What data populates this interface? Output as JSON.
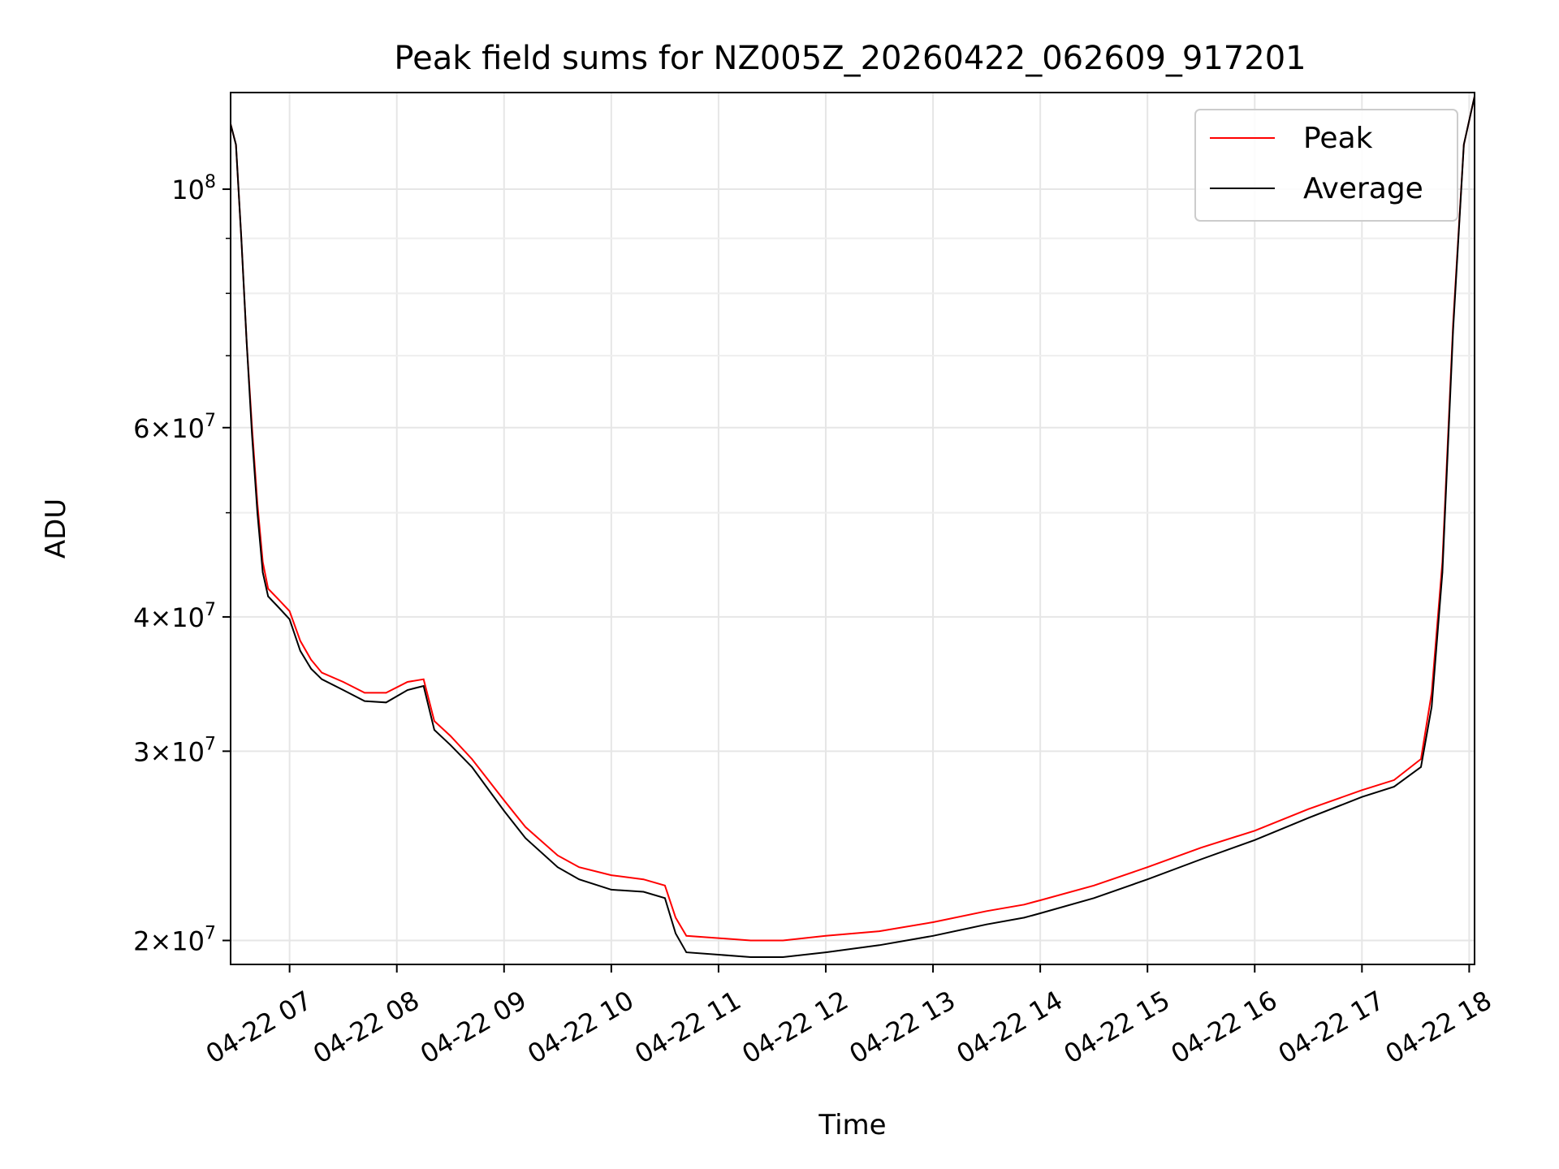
{
  "chart_data": {
    "type": "line",
    "title": "Peak field sums for NZ005Z_20260422_062609_917201",
    "xlabel": "Time",
    "ylabel": "ADU",
    "yscale": "log",
    "xlim": [
      6.45,
      18.05
    ],
    "ylim": [
      19000000,
      123000000
    ],
    "grid": true,
    "legend_position": "top-right",
    "x_ticks": [
      {
        "value": 7,
        "label": "04-22 07"
      },
      {
        "value": 8,
        "label": "04-22 08"
      },
      {
        "value": 9,
        "label": "04-22 09"
      },
      {
        "value": 10,
        "label": "04-22 10"
      },
      {
        "value": 11,
        "label": "04-22 11"
      },
      {
        "value": 12,
        "label": "04-22 12"
      },
      {
        "value": 13,
        "label": "04-22 13"
      },
      {
        "value": 14,
        "label": "04-22 14"
      },
      {
        "value": 15,
        "label": "04-22 15"
      },
      {
        "value": 16,
        "label": "04-22 16"
      },
      {
        "value": 17,
        "label": "04-22 17"
      },
      {
        "value": 18,
        "label": "04-22 18"
      }
    ],
    "y_ticks": [
      {
        "value": 20000000,
        "base": "2",
        "exp": "7"
      },
      {
        "value": 30000000,
        "base": "3",
        "exp": "7"
      },
      {
        "value": 40000000,
        "base": "4",
        "exp": "7"
      },
      {
        "value": 60000000,
        "base": "6",
        "exp": "7"
      },
      {
        "value": 100000000,
        "base": "10",
        "exp": "8"
      }
    ],
    "y_minor_ticks": [
      50000000,
      70000000,
      80000000,
      90000000
    ],
    "series": [
      {
        "name": "Peak",
        "color": "#ff0000",
        "x": [
          6.45,
          6.5,
          6.55,
          6.6,
          6.65,
          6.7,
          6.75,
          6.8,
          6.9,
          7.0,
          7.1,
          7.2,
          7.3,
          7.5,
          7.7,
          7.9,
          8.1,
          8.25,
          8.35,
          8.5,
          8.7,
          9.0,
          9.2,
          9.5,
          9.7,
          10.0,
          10.3,
          10.5,
          10.6,
          10.7,
          11.0,
          11.3,
          11.6,
          12.0,
          12.5,
          13.0,
          13.5,
          13.85,
          14.0,
          14.5,
          15.0,
          15.5,
          16.0,
          16.5,
          17.0,
          17.3,
          17.55,
          17.65,
          17.75,
          17.85,
          17.95,
          18.05
        ],
        "y": [
          115000000,
          110000000,
          90000000,
          72000000,
          60000000,
          51000000,
          45000000,
          42500000,
          41500000,
          40500000,
          38000000,
          36500000,
          35500000,
          34800000,
          34000000,
          34000000,
          34800000,
          35000000,
          32000000,
          31000000,
          29500000,
          27000000,
          25500000,
          24000000,
          23400000,
          23000000,
          22800000,
          22500000,
          21000000,
          20200000,
          20100000,
          20000000,
          20000000,
          20200000,
          20400000,
          20800000,
          21300000,
          21600000,
          21800000,
          22500000,
          23400000,
          24400000,
          25300000,
          26500000,
          27600000,
          28200000,
          29500000,
          34000000,
          45000000,
          75000000,
          110000000,
          122000000
        ]
      },
      {
        "name": "Average",
        "color": "#000000",
        "x": [
          6.45,
          6.5,
          6.55,
          6.6,
          6.65,
          6.7,
          6.75,
          6.8,
          6.9,
          7.0,
          7.1,
          7.2,
          7.3,
          7.5,
          7.7,
          7.9,
          8.1,
          8.25,
          8.35,
          8.5,
          8.7,
          9.0,
          9.2,
          9.5,
          9.7,
          10.0,
          10.3,
          10.5,
          10.6,
          10.7,
          11.0,
          11.3,
          11.6,
          12.0,
          12.5,
          13.0,
          13.5,
          13.85,
          14.0,
          14.5,
          15.0,
          15.5,
          16.0,
          16.5,
          17.0,
          17.3,
          17.55,
          17.65,
          17.75,
          17.85,
          17.95,
          18.05
        ],
        "y": [
          115000000,
          110000000,
          90000000,
          72000000,
          59000000,
          50000000,
          44000000,
          41800000,
          40800000,
          39800000,
          37200000,
          35800000,
          35000000,
          34200000,
          33400000,
          33300000,
          34200000,
          34500000,
          31400000,
          30400000,
          29000000,
          26400000,
          24900000,
          23400000,
          22800000,
          22300000,
          22200000,
          21900000,
          20300000,
          19500000,
          19400000,
          19300000,
          19300000,
          19500000,
          19800000,
          20200000,
          20700000,
          21000000,
          21200000,
          21900000,
          22800000,
          23800000,
          24800000,
          26000000,
          27200000,
          27800000,
          29000000,
          33000000,
          44000000,
          74000000,
          110000000,
          122000000
        ]
      }
    ]
  }
}
